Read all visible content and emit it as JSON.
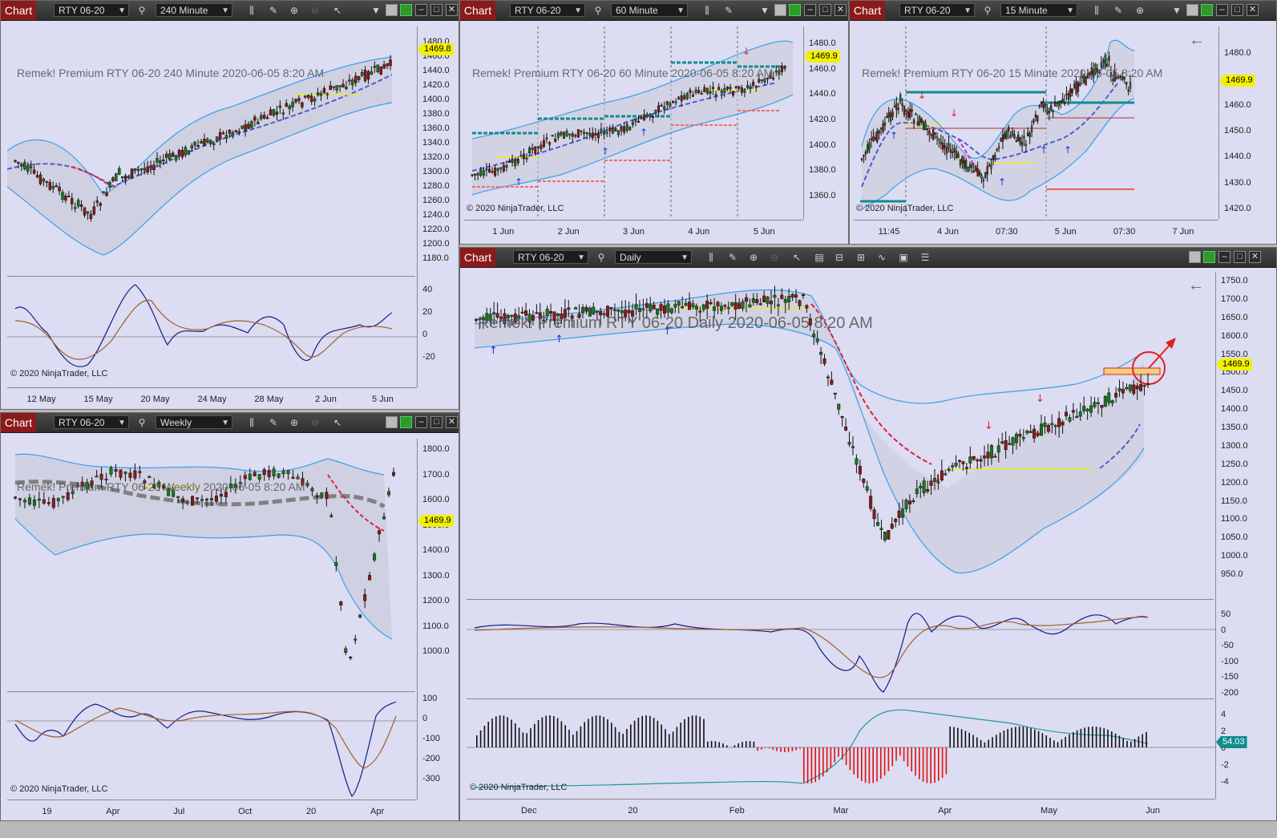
{
  "chart_label": "Chart",
  "instrument": "RTY 06-20",
  "copyright": "© 2020 NinjaTrader, LLC",
  "windows": {
    "w240": {
      "timeframe": "240 Minute",
      "watermark": "Remek!  Premium  RTY 06-20  240 Minute  2020-06-05 8:20 AM",
      "price_tag": "1469.8",
      "y_ticks": [
        "1480.0",
        "1460.0",
        "1440.0",
        "1420.0",
        "1400.0",
        "1380.0",
        "1360.0",
        "1340.0",
        "1320.0",
        "1300.0",
        "1280.0",
        "1260.0",
        "1240.0",
        "1220.0",
        "1200.0",
        "1180.0"
      ],
      "osc_ticks": [
        "40",
        "20",
        "0",
        "-20"
      ],
      "x_ticks": [
        "12 May",
        "15 May",
        "20 May",
        "24 May",
        "28 May",
        "2 Jun",
        "5 Jun"
      ]
    },
    "w60": {
      "timeframe": "60 Minute",
      "watermark": "Remek!  Premium  RTY 06-20  60 Minute  2020-06-05 8:20 AM",
      "price_tag": "1469.9",
      "y_ticks": [
        "1480.0",
        "1460.0",
        "1440.0",
        "1420.0",
        "1400.0",
        "1380.0",
        "1360.0"
      ],
      "x_ticks": [
        "1 Jun",
        "2 Jun",
        "3 Jun",
        "4 Jun",
        "5 Jun"
      ]
    },
    "w15": {
      "timeframe": "15 Minute",
      "watermark": "Remek!  Premium  RTY 06-20  15 Minute  2020-06-05 8:20 AM",
      "price_tag": "1469.9",
      "y_ticks": [
        "1480.0",
        "1470.0",
        "1460.0",
        "1450.0",
        "1440.0",
        "1430.0",
        "1420.0"
      ],
      "x_ticks": [
        "11:45",
        "4 Jun",
        "07:30",
        "5 Jun",
        "07:30",
        "7 Jun"
      ]
    },
    "wWeekly": {
      "timeframe": "Weekly",
      "watermark": "Remek!  Premium  RTY 06-20  Weekly  2020-06-05 8:20 AM",
      "price_tag": "1469.9",
      "y_ticks": [
        "1800.0",
        "1700.0",
        "1600.0",
        "1500.0",
        "1400.0",
        "1300.0",
        "1200.0",
        "1100.0",
        "1000.0"
      ],
      "osc_ticks": [
        "100",
        "0",
        "-100",
        "-200",
        "-300"
      ],
      "x_ticks": [
        "19",
        "Apr",
        "Jul",
        "Oct",
        "20",
        "Apr"
      ]
    },
    "wDaily": {
      "timeframe": "Daily",
      "watermark": "Remek!  Premium  RTY 06-20  Daily  2020-06-05 8:20 AM",
      "price_tag": "1469.9",
      "osc2_tag": "54.03",
      "y_ticks": [
        "1750.0",
        "1700.0",
        "1650.0",
        "1600.0",
        "1550.0",
        "1500.0",
        "1450.0",
        "1400.0",
        "1350.0",
        "1300.0",
        "1250.0",
        "1200.0",
        "1150.0",
        "1100.0",
        "1050.0",
        "1000.0",
        "950.0"
      ],
      "osc_ticks": [
        "50",
        "0",
        "-50",
        "-100",
        "-150",
        "-200"
      ],
      "osc2_ticks": [
        "4",
        "2",
        "0",
        "-2",
        "-4"
      ],
      "x_ticks": [
        "Dec",
        "20",
        "Feb",
        "Mar",
        "Apr",
        "May",
        "Jun"
      ]
    }
  },
  "colors": {
    "bull": "#1a7a1a",
    "bear": "#8b1a1a",
    "band": "#3aa0e8",
    "mid_dash": "#4a5fd0",
    "fast": "#1a1a8a",
    "slow": "#a0602a",
    "accent": "#8b1a1a"
  }
}
